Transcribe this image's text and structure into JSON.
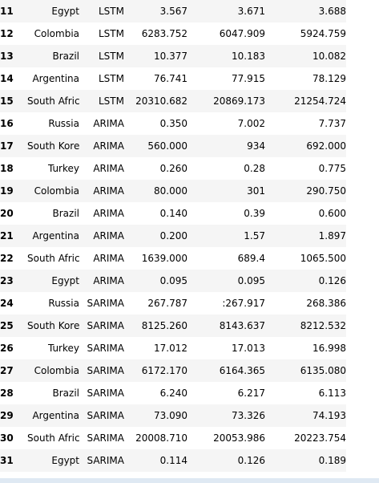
{
  "table": {
    "rows": [
      {
        "index": "11",
        "country": "Egypt",
        "model": "LSTM",
        "v1": "3.567",
        "v2": "3.671",
        "v3": "3.688"
      },
      {
        "index": "12",
        "country": "Colombia",
        "model": "LSTM",
        "v1": "6283.752",
        "v2": "6047.909",
        "v3": "5924.759"
      },
      {
        "index": "13",
        "country": "Brazil",
        "model": "LSTM",
        "v1": "10.377",
        "v2": "10.183",
        "v3": "10.082"
      },
      {
        "index": "14",
        "country": "Argentina",
        "model": "LSTM",
        "v1": "76.741",
        "v2": "77.915",
        "v3": "78.129"
      },
      {
        "index": "15",
        "country": "South Africa",
        "model": "LSTM",
        "v1": "20310.682",
        "v2": "20869.173",
        "v3": "21254.724"
      },
      {
        "index": "16",
        "country": "Russia",
        "model": "ARIMA",
        "v1": "0.350",
        "v2": "7.002",
        "v3": "7.737"
      },
      {
        "index": "17",
        "country": "South Korea",
        "model": "ARIMA",
        "v1": "560.000",
        "v2": "934",
        "v3": "692.000"
      },
      {
        "index": "18",
        "country": "Turkey",
        "model": "ARIMA",
        "v1": "0.260",
        "v2": "0.28",
        "v3": "0.775"
      },
      {
        "index": "19",
        "country": "Colombia",
        "model": "ARIMA",
        "v1": "80.000",
        "v2": "301",
        "v3": "290.750"
      },
      {
        "index": "20",
        "country": "Brazil",
        "model": "ARIMA",
        "v1": "0.140",
        "v2": "0.39",
        "v3": "0.600"
      },
      {
        "index": "21",
        "country": "Argentina",
        "model": "ARIMA",
        "v1": "0.200",
        "v2": "1.57",
        "v3": "1.897"
      },
      {
        "index": "22",
        "country": "South Africa",
        "model": "ARIMA",
        "v1": "1639.000",
        "v2": "689.4",
        "v3": "1065.500"
      },
      {
        "index": "23",
        "country": "Egypt",
        "model": "ARIMA",
        "v1": "0.095",
        "v2": "0.095",
        "v3": "0.126"
      },
      {
        "index": "24",
        "country": "Russia",
        "model": "SARIMA",
        "v1": "267.787",
        "v2": ":267.917",
        "v3": "268.386"
      },
      {
        "index": "25",
        "country": "South Korea",
        "model": "SARIMA",
        "v1": "8125.260",
        "v2": "8143.637",
        "v3": "8212.532"
      },
      {
        "index": "26",
        "country": "Turkey",
        "model": "SARIMA",
        "v1": "17.012",
        "v2": "17.013",
        "v3": "16.998"
      },
      {
        "index": "27",
        "country": "Colombia",
        "model": "SARIMA",
        "v1": "6172.170",
        "v2": "6164.365",
        "v3": "6135.080"
      },
      {
        "index": "28",
        "country": "Brazil",
        "model": "SARIMA",
        "v1": "6.240",
        "v2": "6.217",
        "v3": "6.113"
      },
      {
        "index": "29",
        "country": "Argentina",
        "model": "SARIMA",
        "v1": "73.090",
        "v2": "73.326",
        "v3": "74.193"
      },
      {
        "index": "30",
        "country": "South Africa",
        "model": "SARIMA",
        "v1": "20008.710",
        "v2": "20053.986",
        "v3": "20223.754"
      },
      {
        "index": "31",
        "country": "Egypt",
        "model": "SARIMA",
        "v1": "0.114",
        "v2": "0.126",
        "v3": "0.189"
      }
    ]
  }
}
